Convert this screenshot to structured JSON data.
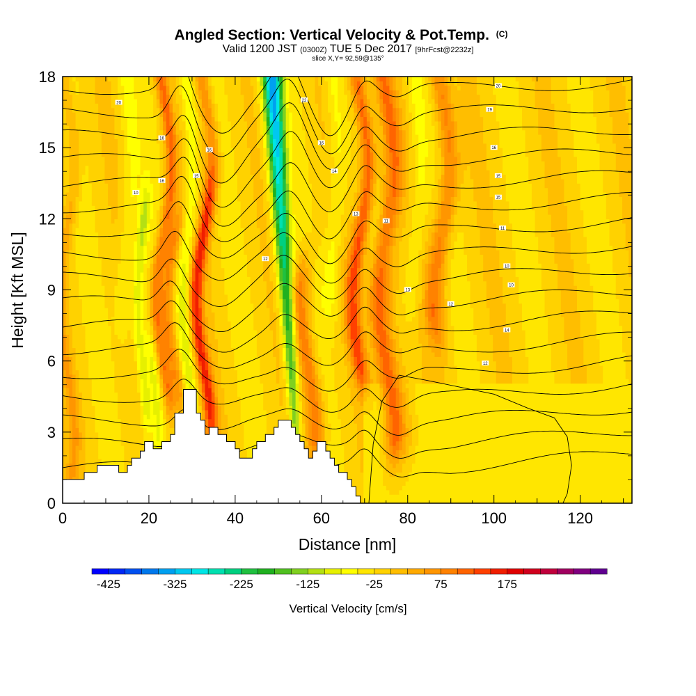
{
  "chart_data": {
    "type": "heatmap",
    "title": "Angled Section: Vertical Velocity & Pot.Temp.",
    "title_suffix": "(C)",
    "subtitle_main_a": "Valid 1200 JST",
    "subtitle_zulu": "(0300Z)",
    "subtitle_main_b": "TUE 5 Dec 2017",
    "subtitle_fcst": "[9hrFcst@2232z]",
    "slice_label": "slice X,Y= 92,59@135°",
    "xlabel": "Distance [nm]",
    "ylabel": "Height [Kft MSL]",
    "xlim": [
      0,
      132
    ],
    "ylim": [
      0,
      18
    ],
    "x_ticks": [
      "0",
      "20",
      "40",
      "60",
      "80",
      "100",
      "120"
    ],
    "y_ticks": [
      "0",
      "3",
      "6",
      "9",
      "12",
      "15",
      "18"
    ],
    "x_tick_values": [
      0,
      20,
      40,
      60,
      80,
      100,
      120
    ],
    "y_tick_values": [
      0,
      3,
      6,
      9,
      12,
      15,
      18
    ],
    "colorbar": {
      "label": "Vertical Velocity [cm/s]",
      "min": -450,
      "step": 25,
      "tick_labels": [
        "-425",
        "-325",
        "-225",
        "-125",
        "-25",
        "75",
        "175"
      ],
      "tick_values": [
        -425,
        -325,
        -225,
        -125,
        -25,
        75,
        175
      ],
      "colors": [
        "#0000ff",
        "#0028f5",
        "#0050f0",
        "#0078ec",
        "#00a0f0",
        "#00c8f0",
        "#00e6e6",
        "#00e0b0",
        "#00d080",
        "#20c040",
        "#20b020",
        "#50c020",
        "#80d020",
        "#b4e014",
        "#e6f000",
        "#ffff00",
        "#ffe600",
        "#ffd200",
        "#ffbe00",
        "#ffaa00",
        "#ff9600",
        "#ff8200",
        "#ff6400",
        "#ff4000",
        "#f01e00",
        "#e00000",
        "#d0001e",
        "#c0003c",
        "#a00060",
        "#800080",
        "#600090"
      ]
    },
    "terrain": [
      [
        0,
        1.0
      ],
      [
        5,
        1.0
      ],
      [
        5,
        1.3
      ],
      [
        8,
        1.3
      ],
      [
        8,
        1.6
      ],
      [
        12,
        1.6
      ],
      [
        13,
        1.6
      ],
      [
        13,
        1.3
      ],
      [
        15,
        1.3
      ],
      [
        15,
        1.6
      ],
      [
        16,
        1.6
      ],
      [
        16,
        1.9
      ],
      [
        18,
        1.9
      ],
      [
        18,
        2.2
      ],
      [
        19,
        2.2
      ],
      [
        19,
        2.6
      ],
      [
        21,
        2.6
      ],
      [
        21,
        2.3
      ],
      [
        23,
        2.3
      ],
      [
        23,
        2.6
      ],
      [
        25,
        2.6
      ],
      [
        25,
        2.9
      ],
      [
        26,
        2.9
      ],
      [
        26,
        3.8
      ],
      [
        28,
        3.8
      ],
      [
        28,
        4.8
      ],
      [
        31,
        4.8
      ],
      [
        31,
        3.8
      ],
      [
        32,
        3.8
      ],
      [
        32,
        3.5
      ],
      [
        33,
        3.5
      ],
      [
        33,
        2.9
      ],
      [
        34,
        2.9
      ],
      [
        34,
        3.2
      ],
      [
        36,
        3.2
      ],
      [
        36,
        2.9
      ],
      [
        38,
        2.9
      ],
      [
        38,
        2.6
      ],
      [
        40,
        2.6
      ],
      [
        40,
        2.3
      ],
      [
        41,
        2.3
      ],
      [
        41,
        1.9
      ],
      [
        44,
        1.9
      ],
      [
        44,
        2.3
      ],
      [
        45,
        2.3
      ],
      [
        45,
        2.6
      ],
      [
        47,
        2.6
      ],
      [
        47,
        2.9
      ],
      [
        49,
        2.9
      ],
      [
        49,
        3.2
      ],
      [
        50,
        3.2
      ],
      [
        50,
        3.5
      ],
      [
        53,
        3.5
      ],
      [
        53,
        3.2
      ],
      [
        54,
        3.2
      ],
      [
        54,
        2.9
      ],
      [
        55,
        2.9
      ],
      [
        55,
        2.6
      ],
      [
        56,
        2.6
      ],
      [
        56,
        2.3
      ],
      [
        57,
        2.3
      ],
      [
        57,
        1.9
      ],
      [
        58,
        1.9
      ],
      [
        58,
        2.2
      ],
      [
        59,
        2.2
      ],
      [
        59,
        2.6
      ],
      [
        61,
        2.6
      ],
      [
        61,
        2.2
      ],
      [
        62,
        2.2
      ],
      [
        62,
        1.9
      ],
      [
        63,
        1.9
      ],
      [
        63,
        1.6
      ],
      [
        64,
        1.6
      ],
      [
        64,
        1.3
      ],
      [
        66,
        1.3
      ],
      [
        66,
        1.0
      ],
      [
        67,
        1.0
      ],
      [
        67,
        0.7
      ],
      [
        68,
        0.7
      ],
      [
        68,
        0.3
      ],
      [
        69,
        0.3
      ],
      [
        69,
        0.0
      ]
    ],
    "updraft_columns": [
      {
        "x": 1,
        "w": 1.5,
        "amp": 55
      },
      {
        "x": 23.5,
        "w": 1.4,
        "amp": 120,
        "bot": 5,
        "top": 18
      },
      {
        "x": 26,
        "w": 1.6,
        "amp": 105,
        "bot": 5,
        "top": 11
      },
      {
        "x": 33,
        "w": 1.6,
        "amp": 95,
        "bot": 4,
        "top": 18
      },
      {
        "x": 32.5,
        "w": 1.4,
        "amp": 80,
        "bot": 4,
        "top": 13
      },
      {
        "x": 57,
        "w": 2,
        "amp": 115,
        "bot": 3,
        "top": 9
      },
      {
        "x": 69,
        "w": 1.8,
        "amp": 140,
        "bot": 6,
        "top": 18
      },
      {
        "x": 75,
        "w": 2.2,
        "amp": 115,
        "bot": 3,
        "top": 18
      },
      {
        "x": 88,
        "w": 2.2,
        "amp": 105,
        "bot": 8,
        "top": 18
      },
      {
        "x": 77,
        "w": 3,
        "amp": 45,
        "bot": 3,
        "top": 9
      }
    ],
    "downdraft_columns": [
      {
        "x": 18.5,
        "w": 1.4,
        "amp": -85,
        "bot": 4,
        "top": 12
      },
      {
        "x": 21,
        "w": 1.4,
        "amp": -70,
        "bot": 2,
        "top": 6
      },
      {
        "x": 29,
        "w": 1.6,
        "amp": -70,
        "bot": 5,
        "top": 18
      },
      {
        "x": 15,
        "w": 2,
        "amp": -40,
        "bot": 8,
        "top": 18
      },
      {
        "x": 63,
        "w": 2,
        "amp": -50,
        "bot": 9,
        "top": 18
      },
      {
        "x": 82,
        "w": 2,
        "amp": -45,
        "bot": 9,
        "top": 18
      }
    ],
    "lean_band": {
      "x_top": 48.5,
      "x_bottom": 54,
      "w_top": 2.3,
      "w_bottom": 1.2,
      "amp_top": -330,
      "amp_bottom": -130
    },
    "isentrope_levels": 17,
    "isentrope_labels": [
      {
        "x": 13,
        "y": 16.9,
        "text": "20"
      },
      {
        "x": 17,
        "y": 13.1,
        "text": "10"
      },
      {
        "x": 23,
        "y": 15.4,
        "text": "16"
      },
      {
        "x": 23,
        "y": 13.6,
        "text": "16"
      },
      {
        "x": 31,
        "y": 13.8,
        "text": "15"
      },
      {
        "x": 34,
        "y": 14.9,
        "text": "16"
      },
      {
        "x": 47,
        "y": 10.3,
        "text": "12"
      },
      {
        "x": 56,
        "y": 17.0,
        "text": "22"
      },
      {
        "x": 60,
        "y": 15.2,
        "text": "16"
      },
      {
        "x": 63,
        "y": 14.0,
        "text": "14"
      },
      {
        "x": 68,
        "y": 12.2,
        "text": "13"
      },
      {
        "x": 75,
        "y": 11.9,
        "text": "11"
      },
      {
        "x": 80,
        "y": 9.0,
        "text": "13"
      },
      {
        "x": 90,
        "y": 8.4,
        "text": "12"
      },
      {
        "x": 101,
        "y": 17.6,
        "text": "20"
      },
      {
        "x": 99,
        "y": 16.6,
        "text": "19"
      },
      {
        "x": 100,
        "y": 15.0,
        "text": "16"
      },
      {
        "x": 101,
        "y": 13.8,
        "text": "15"
      },
      {
        "x": 101,
        "y": 12.9,
        "text": "15"
      },
      {
        "x": 102,
        "y": 11.6,
        "text": "11"
      },
      {
        "x": 103,
        "y": 10.0,
        "text": "10"
      },
      {
        "x": 104,
        "y": 9.2,
        "text": "10"
      },
      {
        "x": 103,
        "y": 7.3,
        "text": "14"
      },
      {
        "x": 98,
        "y": 5.9,
        "text": "12"
      }
    ]
  }
}
